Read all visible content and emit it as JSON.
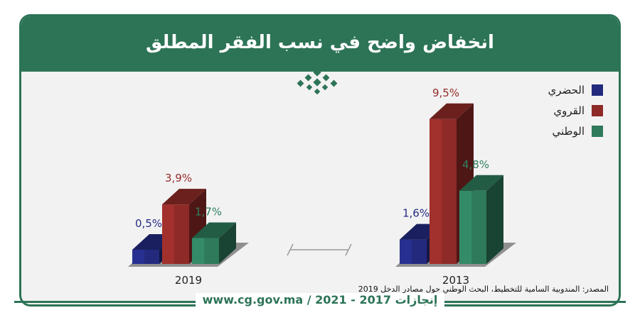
{
  "title": "انخفاض واضح في نسب الفقر المطلق",
  "legend": [
    {
      "label": "الحضري",
      "color": "#232a7e"
    },
    {
      "label": "القروي",
      "color": "#8e2a27"
    },
    {
      "label": "الوطني",
      "color": "#2e7a5b"
    }
  ],
  "source": "المصدر: المندوبية السامية للتخطيط، البحث الوطني حول مصادر الدخل 2019",
  "footer": {
    "achievements": "إنجازات 2017 - 2021",
    "separator": "/",
    "website": "www.cg.gov.ma"
  },
  "chart_data": {
    "type": "bar",
    "categories": [
      "2019",
      "2013"
    ],
    "series": [
      {
        "name": "الحضري",
        "values": [
          0.5,
          1.6
        ],
        "labels": [
          "0,5%",
          "1,6%"
        ],
        "color": "#232a7e"
      },
      {
        "name": "القروي",
        "values": [
          3.9,
          9.5
        ],
        "labels": [
          "3,9%",
          "9,5%"
        ],
        "color": "#8e2a27"
      },
      {
        "name": "الوطني",
        "values": [
          1.7,
          4.8
        ],
        "labels": [
          "1,7%",
          "4,8%"
        ],
        "color": "#2e7a5b"
      }
    ],
    "unit": "%"
  }
}
